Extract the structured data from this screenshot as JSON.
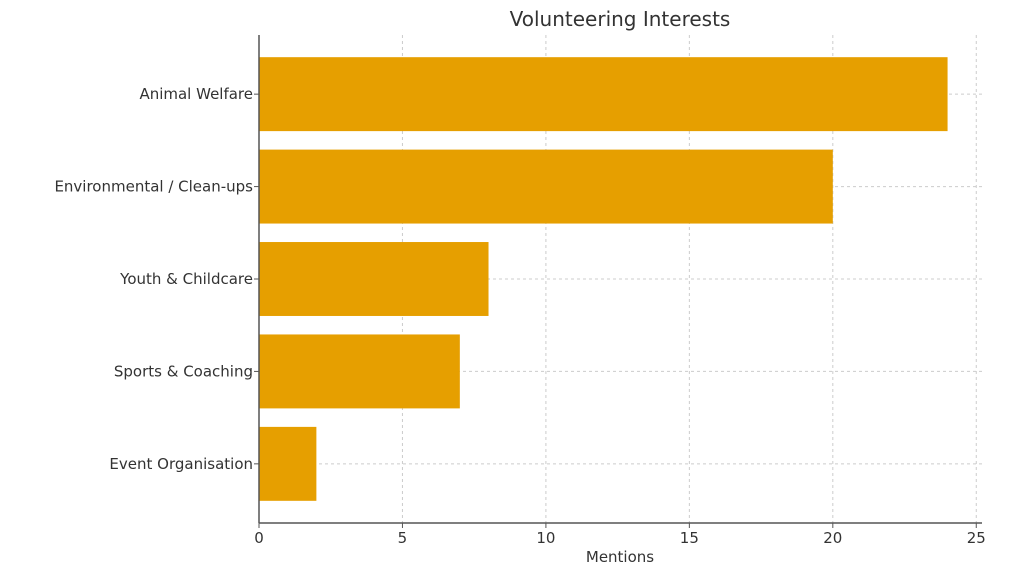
{
  "chart_data": {
    "type": "bar",
    "orientation": "horizontal",
    "title": "Volunteering Interests",
    "xlabel": "Mentions",
    "ylabel": "",
    "categories": [
      "Animal Welfare",
      "Environmental / Clean-ups",
      "Youth & Childcare",
      "Sports & Coaching",
      "Event Organisation"
    ],
    "values": [
      24,
      20,
      8,
      7,
      2
    ],
    "xlim": [
      0,
      25.2
    ],
    "xticks": [
      0,
      5,
      10,
      15,
      20,
      25
    ],
    "grid": true,
    "bar_color": "#E69F00"
  }
}
